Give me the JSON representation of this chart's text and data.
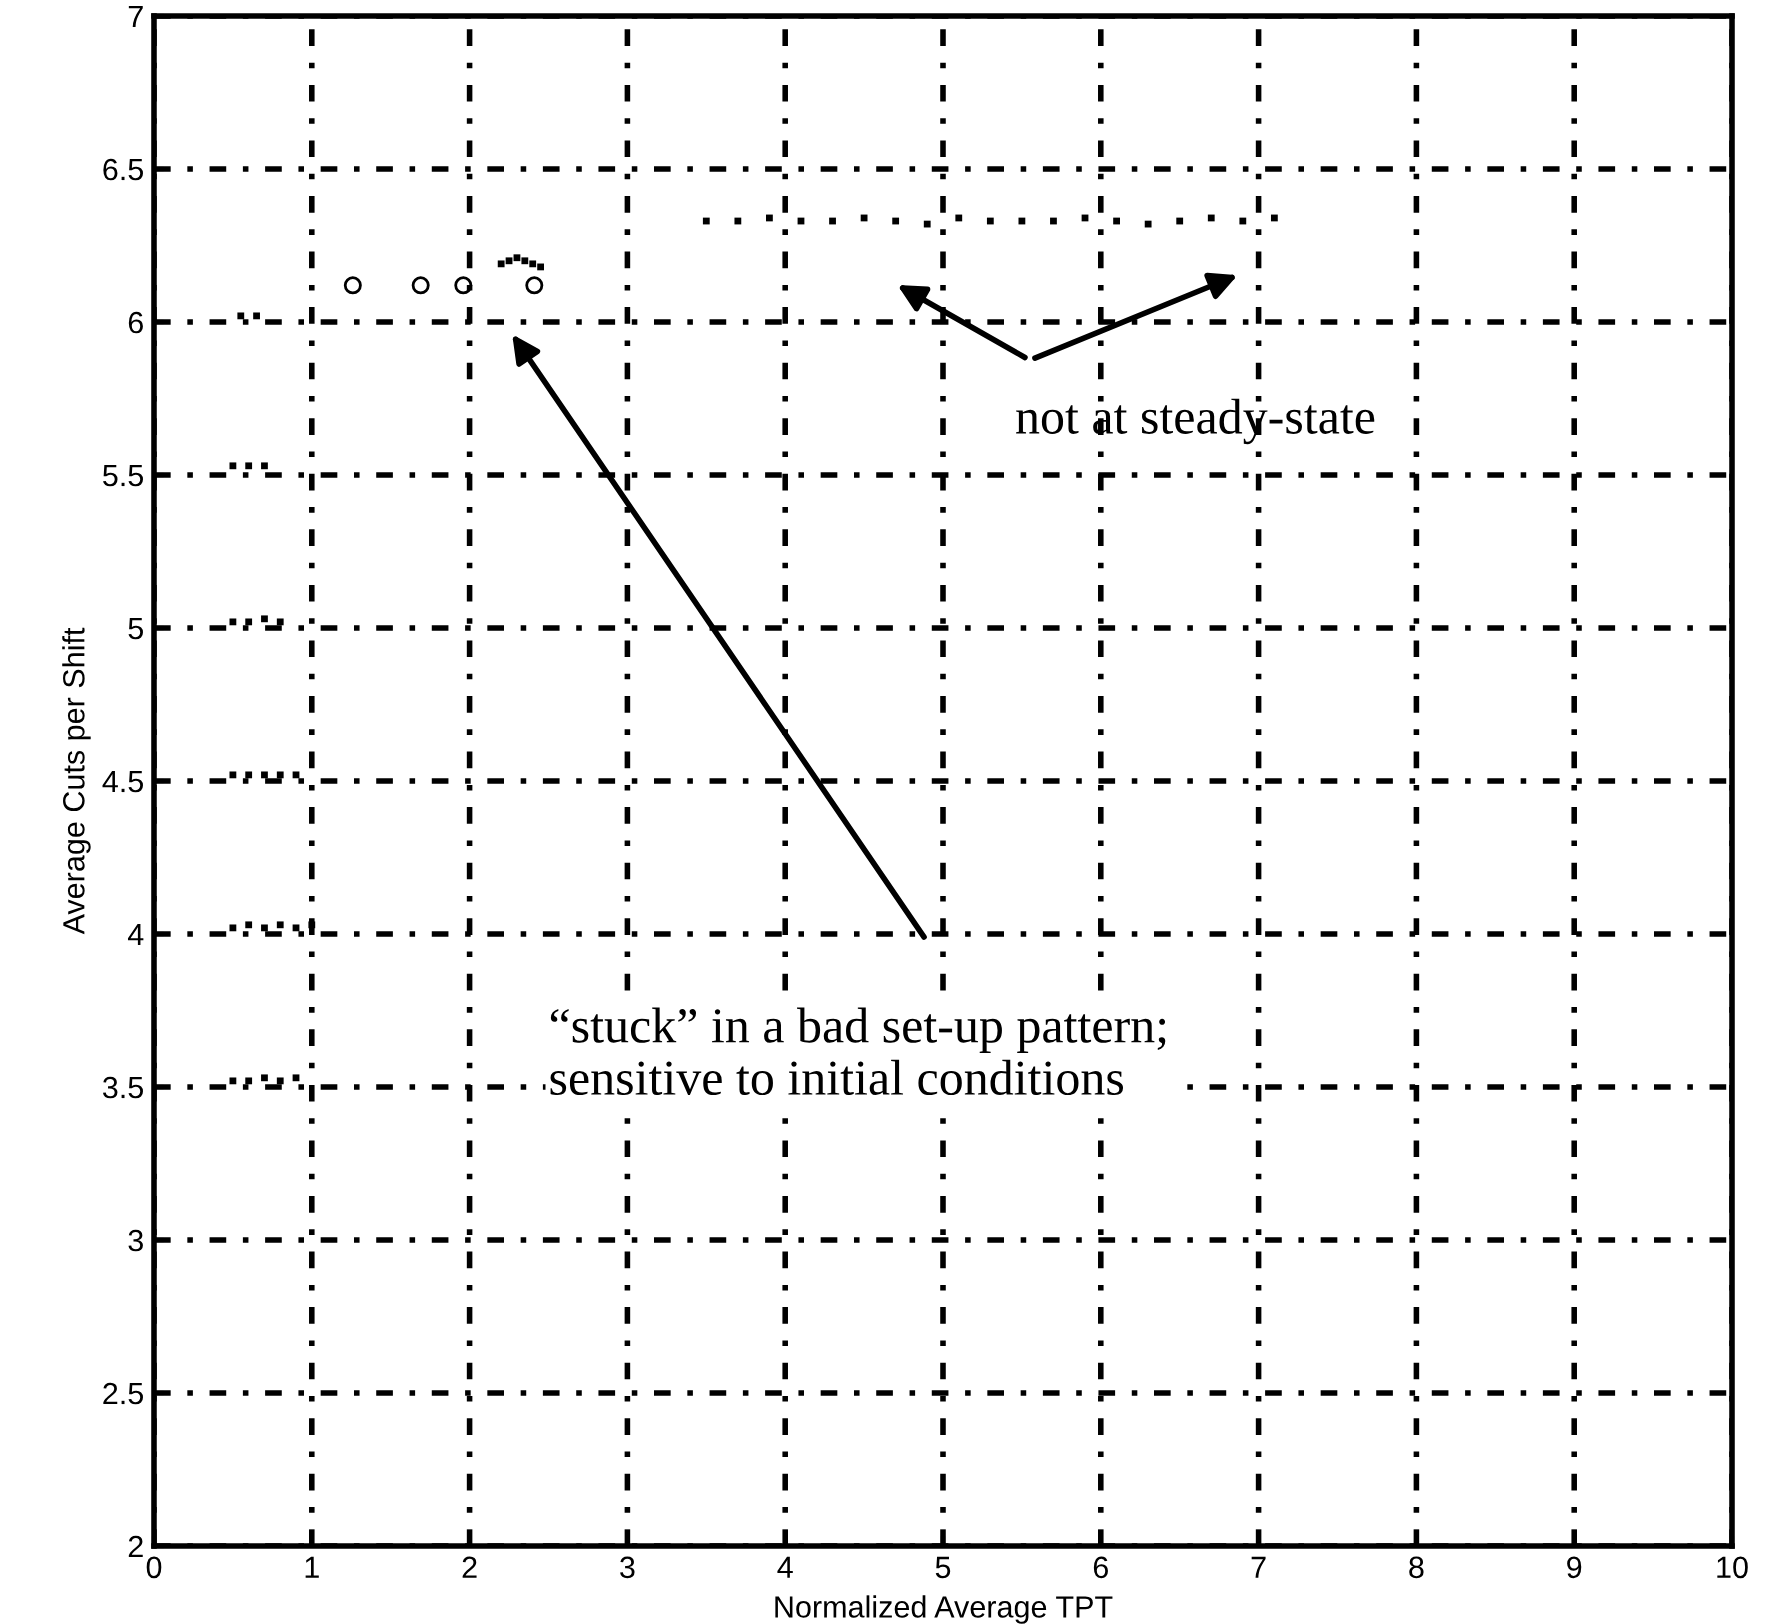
{
  "chart_data": {
    "type": "scatter",
    "xlabel": "Normalized Average TPT",
    "ylabel": "Average Cuts per Shift",
    "xlim": [
      0,
      10
    ],
    "ylim": [
      2,
      7
    ],
    "xticks": [
      0,
      1,
      2,
      3,
      4,
      5,
      6,
      7,
      8,
      9,
      10
    ],
    "yticks": [
      2,
      2.5,
      3,
      3.5,
      4,
      4.5,
      5,
      5.5,
      6,
      6.5,
      7
    ],
    "grid": true,
    "series": [
      {
        "color": "#000000",
        "marker": "square",
        "x": [
          0.5,
          0.6,
          0.7,
          0.8,
          0.9,
          0.5,
          0.6,
          0.7,
          0.8,
          0.9,
          1.0,
          0.5,
          0.6,
          0.7,
          0.8,
          0.9,
          0.5,
          0.6,
          0.7,
          0.8,
          0.5,
          0.6,
          0.7,
          0.55,
          0.65,
          2.2,
          2.25,
          2.3,
          2.35,
          2.4,
          2.45,
          3.5,
          3.7,
          3.9,
          4.1,
          4.3,
          4.5,
          4.7,
          4.9,
          5.1,
          5.3,
          5.5,
          5.7,
          5.9,
          6.1,
          6.3,
          6.5,
          6.7,
          6.9,
          7.1
        ],
        "values": [
          3.52,
          3.52,
          3.53,
          3.52,
          3.53,
          4.02,
          4.03,
          4.02,
          4.03,
          4.02,
          4.03,
          4.52,
          4.52,
          4.52,
          4.52,
          4.52,
          5.02,
          5.02,
          5.03,
          5.02,
          5.53,
          5.53,
          5.53,
          6.02,
          6.02,
          6.19,
          6.2,
          6.21,
          6.2,
          6.19,
          6.18,
          6.33,
          6.33,
          6.34,
          6.33,
          6.33,
          6.34,
          6.33,
          6.32,
          6.34,
          6.33,
          6.33,
          6.33,
          6.34,
          6.33,
          6.32,
          6.33,
          6.34,
          6.33,
          6.34
        ]
      },
      {
        "color": "#000000",
        "marker": "circle",
        "x": [
          1.26,
          1.69,
          1.96,
          2.41
        ],
        "values": [
          6.12,
          6.12,
          6.12,
          6.12
        ]
      }
    ],
    "annotations": [
      "not at steady-state",
      "“stuck” in a bad set-up pattern;\nsensitive to initial conditions"
    ]
  }
}
